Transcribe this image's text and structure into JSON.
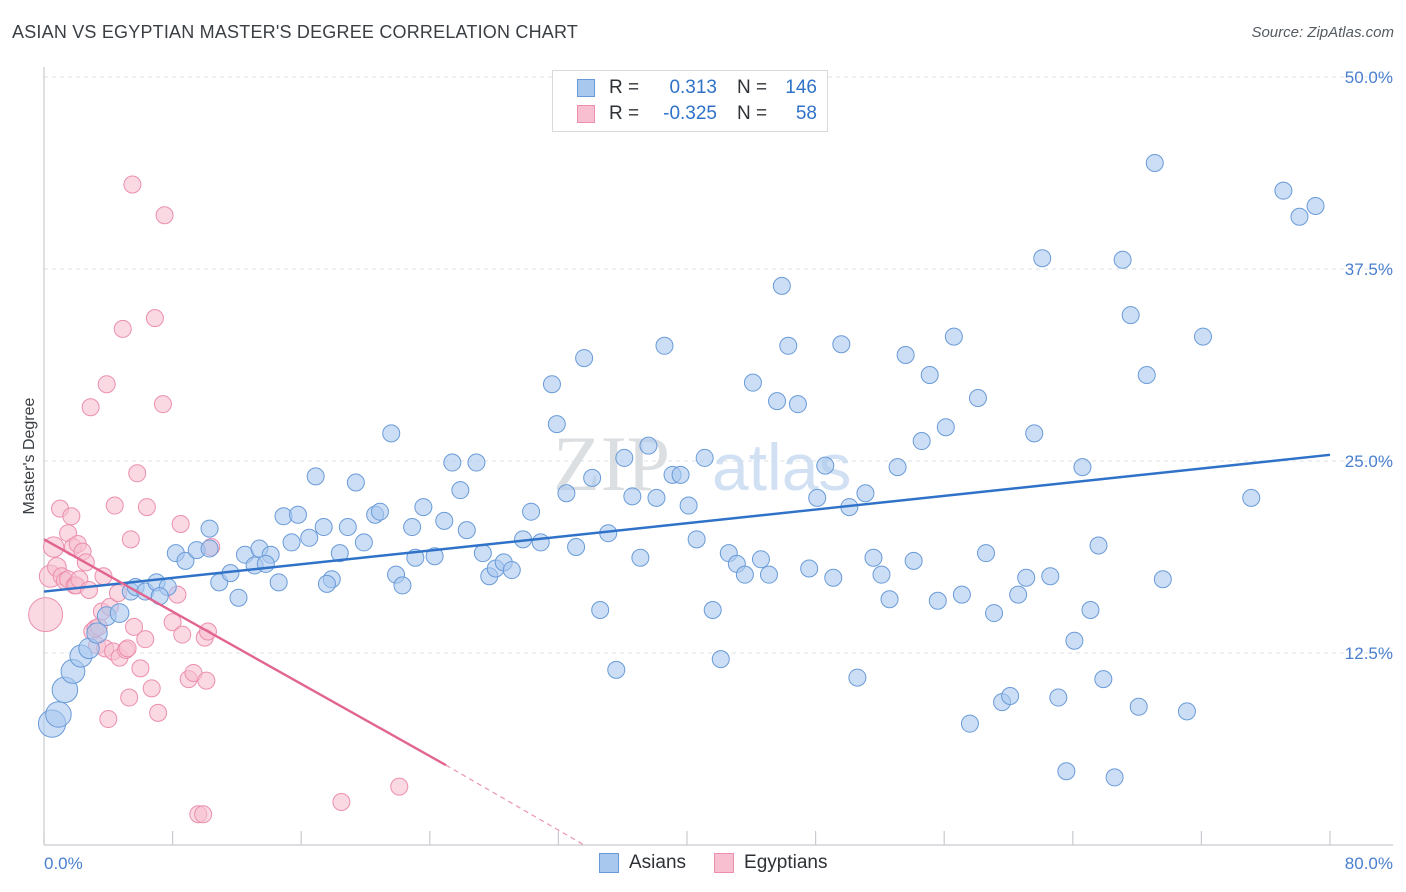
{
  "header": {
    "title": "ASIAN VS EGYPTIAN MASTER'S DEGREE CORRELATION CHART",
    "source": "Source: ZipAtlas.com"
  },
  "watermark": {
    "zip": "ZIP",
    "atlas": "atlas"
  },
  "legend": {
    "rows": [
      {
        "r_label": "R =",
        "r_value": "0.313",
        "n_label": "N =",
        "n_value": "146"
      },
      {
        "r_label": "R =",
        "r_value": "-0.325",
        "n_label": "N =",
        "n_value": "58"
      }
    ]
  },
  "bottom_legend": {
    "asians": "Asians",
    "egyptians": "Egyptians"
  },
  "colors": {
    "asians_fill": "#a9c8ee",
    "asians_stroke": "#6a9bd8",
    "asians_line": "#2f72c8",
    "egyptians_fill": "#f7bfd0",
    "egyptians_stroke": "#ec8fae",
    "egyptians_line": "#e2658f",
    "tick_text": "#4a7fcf",
    "grid": "#dcdfe3"
  },
  "chart_data": {
    "type": "scatter",
    "title": "ASIAN VS EGYPTIAN MASTER'S DEGREE CORRELATION CHART",
    "xlabel": "",
    "ylabel": "Master's Degree",
    "xlim": [
      0,
      80
    ],
    "ylim": [
      0,
      50
    ],
    "x_tick_labels": [
      "0.0%",
      "80.0%"
    ],
    "y_ticks": [
      12.5,
      25.0,
      37.5,
      50.0
    ],
    "y_tick_labels": [
      "12.5%",
      "25.0%",
      "37.5%",
      "50.0%"
    ],
    "grid": true,
    "series": [
      {
        "name": "Asians",
        "R": 0.313,
        "N": 146,
        "trend": {
          "x": [
            0,
            80
          ],
          "y": [
            16.5,
            25.4
          ]
        },
        "points": [
          [
            0.5,
            7.9,
            1.6
          ],
          [
            0.9,
            8.5,
            1.5
          ],
          [
            1.3,
            10.1,
            1.5
          ],
          [
            1.8,
            11.3,
            1.4
          ],
          [
            2.3,
            12.3,
            1.3
          ],
          [
            2.8,
            12.8,
            1.2
          ],
          [
            3.3,
            13.8,
            1.2
          ],
          [
            3.9,
            14.9,
            1.1
          ],
          [
            4.7,
            15.1,
            1.1
          ],
          [
            5.4,
            16.5,
            1.0
          ],
          [
            5.7,
            16.8,
            1.0
          ],
          [
            6.3,
            16.5,
            1.0
          ],
          [
            7.0,
            17.1,
            1.0
          ],
          [
            7.7,
            16.8,
            1.0
          ],
          [
            8.2,
            19.0,
            1.0
          ],
          [
            8.8,
            18.5,
            1.0
          ],
          [
            9.5,
            19.2,
            1.0
          ],
          [
            10.3,
            19.3,
            1.0
          ],
          [
            10.3,
            20.6,
            1.0
          ],
          [
            10.9,
            17.1,
            1.0
          ],
          [
            11.6,
            17.7,
            1.0
          ],
          [
            12.1,
            16.1,
            1.0
          ],
          [
            12.5,
            18.9,
            1.0
          ],
          [
            13.1,
            18.2,
            1.0
          ],
          [
            13.4,
            19.3,
            1.0
          ],
          [
            14.1,
            18.9,
            1.0
          ],
          [
            14.6,
            17.1,
            1.0
          ],
          [
            14.9,
            21.4,
            1.0
          ],
          [
            15.4,
            19.7,
            1.0
          ],
          [
            15.8,
            21.5,
            1.0
          ],
          [
            16.5,
            20.0,
            1.0
          ],
          [
            16.9,
            24.0,
            1.0
          ],
          [
            17.4,
            20.7,
            1.0
          ],
          [
            17.9,
            17.3,
            1.0
          ],
          [
            18.4,
            19.0,
            1.0
          ],
          [
            18.9,
            20.7,
            1.0
          ],
          [
            19.4,
            23.6,
            1.0
          ],
          [
            19.9,
            19.7,
            1.0
          ],
          [
            20.6,
            21.5,
            1.0
          ],
          [
            20.9,
            21.7,
            1.0
          ],
          [
            21.6,
            26.8,
            1.0
          ],
          [
            21.9,
            17.6,
            1.0
          ],
          [
            22.3,
            16.9,
            1.0
          ],
          [
            22.9,
            20.7,
            1.0
          ],
          [
            23.1,
            18.7,
            1.0
          ],
          [
            23.6,
            22.0,
            1.0
          ],
          [
            24.3,
            18.8,
            1.0
          ],
          [
            24.9,
            21.1,
            1.0
          ],
          [
            25.4,
            24.9,
            1.0
          ],
          [
            25.9,
            23.1,
            1.0
          ],
          [
            26.3,
            20.5,
            1.0
          ],
          [
            26.9,
            24.9,
            1.0
          ],
          [
            27.3,
            19.0,
            1.0
          ],
          [
            27.7,
            17.5,
            1.0
          ],
          [
            28.1,
            18.0,
            1.0
          ],
          [
            28.6,
            18.4,
            1.0
          ],
          [
            29.1,
            17.9,
            1.0
          ],
          [
            29.8,
            19.9,
            1.0
          ],
          [
            30.3,
            21.7,
            1.0
          ],
          [
            30.9,
            19.7,
            1.0
          ],
          [
            31.6,
            30.0,
            1.0
          ],
          [
            31.9,
            27.4,
            1.0
          ],
          [
            32.5,
            22.9,
            1.0
          ],
          [
            33.1,
            19.4,
            1.0
          ],
          [
            33.6,
            31.7,
            1.0
          ],
          [
            34.1,
            23.9,
            1.0
          ],
          [
            34.6,
            15.3,
            1.0
          ],
          [
            35.1,
            20.3,
            1.0
          ],
          [
            35.6,
            11.4,
            1.0
          ],
          [
            36.1,
            25.2,
            1.0
          ],
          [
            36.6,
            22.7,
            1.0
          ],
          [
            37.1,
            18.7,
            1.0
          ],
          [
            37.6,
            26.0,
            1.0
          ],
          [
            38.1,
            22.6,
            1.0
          ],
          [
            38.6,
            32.5,
            1.0
          ],
          [
            39.1,
            24.1,
            1.0
          ],
          [
            39.6,
            24.1,
            1.0
          ],
          [
            40.1,
            22.1,
            1.0
          ],
          [
            40.6,
            19.9,
            1.0
          ],
          [
            41.1,
            25.2,
            1.0
          ],
          [
            41.6,
            15.3,
            1.0
          ],
          [
            42.1,
            12.1,
            1.0
          ],
          [
            42.6,
            19.0,
            1.0
          ],
          [
            43.1,
            18.3,
            1.0
          ],
          [
            43.6,
            17.6,
            1.0
          ],
          [
            44.1,
            30.1,
            1.0
          ],
          [
            44.6,
            18.6,
            1.0
          ],
          [
            45.1,
            17.6,
            1.0
          ],
          [
            45.6,
            28.9,
            1.0
          ],
          [
            45.9,
            36.4,
            1.0
          ],
          [
            46.3,
            32.5,
            1.0
          ],
          [
            46.9,
            28.7,
            1.0
          ],
          [
            47.6,
            18.0,
            1.0
          ],
          [
            48.1,
            22.6,
            1.0
          ],
          [
            48.6,
            24.7,
            1.0
          ],
          [
            49.1,
            17.4,
            1.0
          ],
          [
            49.6,
            32.6,
            1.0
          ],
          [
            50.1,
            22.0,
            1.0
          ],
          [
            50.6,
            10.9,
            1.0
          ],
          [
            51.1,
            22.9,
            1.0
          ],
          [
            51.6,
            18.7,
            1.0
          ],
          [
            52.1,
            17.6,
            1.0
          ],
          [
            52.6,
            16.0,
            1.0
          ],
          [
            53.1,
            24.6,
            1.0
          ],
          [
            53.6,
            31.9,
            1.0
          ],
          [
            54.1,
            18.5,
            1.0
          ],
          [
            54.6,
            26.3,
            1.0
          ],
          [
            55.1,
            30.6,
            1.0
          ],
          [
            55.6,
            15.9,
            1.0
          ],
          [
            56.1,
            27.2,
            1.0
          ],
          [
            56.6,
            33.1,
            1.0
          ],
          [
            57.1,
            16.3,
            1.0
          ],
          [
            57.6,
            7.9,
            1.0
          ],
          [
            58.1,
            29.1,
            1.0
          ],
          [
            58.6,
            19.0,
            1.0
          ],
          [
            59.1,
            15.1,
            1.0
          ],
          [
            59.6,
            9.3,
            1.0
          ],
          [
            60.1,
            9.7,
            1.0
          ],
          [
            60.6,
            16.3,
            1.0
          ],
          [
            61.1,
            17.4,
            1.0
          ],
          [
            61.6,
            26.8,
            1.0
          ],
          [
            62.1,
            38.2,
            1.0
          ],
          [
            62.6,
            17.5,
            1.0
          ],
          [
            63.1,
            9.6,
            1.0
          ],
          [
            63.6,
            4.8,
            1.0
          ],
          [
            64.1,
            13.3,
            1.0
          ],
          [
            64.6,
            24.6,
            1.0
          ],
          [
            65.1,
            15.3,
            1.0
          ],
          [
            65.6,
            19.5,
            1.0
          ],
          [
            65.9,
            10.8,
            1.0
          ],
          [
            66.6,
            4.4,
            1.0
          ],
          [
            67.1,
            38.1,
            1.0
          ],
          [
            67.6,
            34.5,
            1.0
          ],
          [
            68.1,
            9.0,
            1.0
          ],
          [
            68.6,
            30.6,
            1.0
          ],
          [
            69.1,
            44.4,
            1.0
          ],
          [
            69.6,
            17.3,
            1.0
          ],
          [
            71.1,
            8.7,
            1.0
          ],
          [
            72.1,
            33.1,
            1.0
          ],
          [
            75.1,
            22.6,
            1.0
          ],
          [
            77.1,
            42.6,
            1.0
          ],
          [
            78.1,
            40.9,
            1.0
          ],
          [
            79.1,
            41.6,
            1.0
          ],
          [
            7.2,
            16.2,
            1.0
          ],
          [
            13.8,
            18.3,
            1.0
          ],
          [
            17.6,
            17.0,
            1.0
          ]
        ]
      },
      {
        "name": "Egyptians",
        "R": -0.325,
        "N": 58,
        "trend": {
          "x": [
            0,
            25
          ],
          "y": [
            19.9,
            5.2
          ]
        },
        "trend_extension": {
          "x": [
            25,
            33.6
          ],
          "y": [
            5.2,
            0
          ]
        },
        "points": [
          [
            0.1,
            15.0,
            2.0
          ],
          [
            0.4,
            17.5,
            1.3
          ],
          [
            0.6,
            19.4,
            1.2
          ],
          [
            0.8,
            18.1,
            1.1
          ],
          [
            1.0,
            21.9,
            1.0
          ],
          [
            1.1,
            17.5,
            1.0
          ],
          [
            1.3,
            17.2,
            1.0
          ],
          [
            1.5,
            20.3,
            1.0
          ],
          [
            1.5,
            17.3,
            1.0
          ],
          [
            1.7,
            21.4,
            1.0
          ],
          [
            1.8,
            19.4,
            1.0
          ],
          [
            1.9,
            16.9,
            1.0
          ],
          [
            2.0,
            16.9,
            1.0
          ],
          [
            2.1,
            19.6,
            1.0
          ],
          [
            2.2,
            17.3,
            1.0
          ],
          [
            2.4,
            19.1,
            1.0
          ],
          [
            2.6,
            18.4,
            1.0
          ],
          [
            2.8,
            16.6,
            1.0
          ],
          [
            2.9,
            28.5,
            1.0
          ],
          [
            3.0,
            13.9,
            1.0
          ],
          [
            3.2,
            14.1,
            1.0
          ],
          [
            3.3,
            13.0,
            1.0
          ],
          [
            3.4,
            14.2,
            1.0
          ],
          [
            3.6,
            15.2,
            1.0
          ],
          [
            3.7,
            17.5,
            1.0
          ],
          [
            3.8,
            12.8,
            1.0
          ],
          [
            3.9,
            30.0,
            1.0
          ],
          [
            4.0,
            8.2,
            1.0
          ],
          [
            4.1,
            15.5,
            1.0
          ],
          [
            4.3,
            12.6,
            1.0
          ],
          [
            4.4,
            22.1,
            1.0
          ],
          [
            4.6,
            16.4,
            1.0
          ],
          [
            4.7,
            12.2,
            1.0
          ],
          [
            4.9,
            33.6,
            1.0
          ],
          [
            5.1,
            12.7,
            1.0
          ],
          [
            5.2,
            12.8,
            1.0
          ],
          [
            5.3,
            9.6,
            1.0
          ],
          [
            5.4,
            19.9,
            1.0
          ],
          [
            5.6,
            14.2,
            1.0
          ],
          [
            5.8,
            24.2,
            1.0
          ],
          [
            6.0,
            11.5,
            1.0
          ],
          [
            6.3,
            13.4,
            1.0
          ],
          [
            6.4,
            22.0,
            1.0
          ],
          [
            6.7,
            10.2,
            1.0
          ],
          [
            6.9,
            34.3,
            1.0
          ],
          [
            7.1,
            8.6,
            1.0
          ],
          [
            7.4,
            28.7,
            1.0
          ],
          [
            7.5,
            41.0,
            1.0
          ],
          [
            8.0,
            14.5,
            1.0
          ],
          [
            8.3,
            16.3,
            1.0
          ],
          [
            8.6,
            13.7,
            1.0
          ],
          [
            9.0,
            10.8,
            1.0
          ],
          [
            8.5,
            20.9,
            1.0
          ],
          [
            9.3,
            11.2,
            1.0
          ],
          [
            9.6,
            2.0,
            1.0
          ],
          [
            10.0,
            13.5,
            1.0
          ],
          [
            10.4,
            19.4,
            1.0
          ],
          [
            18.5,
            2.8,
            1.0
          ],
          [
            5.5,
            43.0,
            1.0
          ],
          [
            9.9,
            2.0,
            1.0
          ],
          [
            10.1,
            10.7,
            1.0
          ],
          [
            10.2,
            13.9,
            1.0
          ],
          [
            22.1,
            3.8,
            1.0
          ]
        ]
      }
    ]
  }
}
